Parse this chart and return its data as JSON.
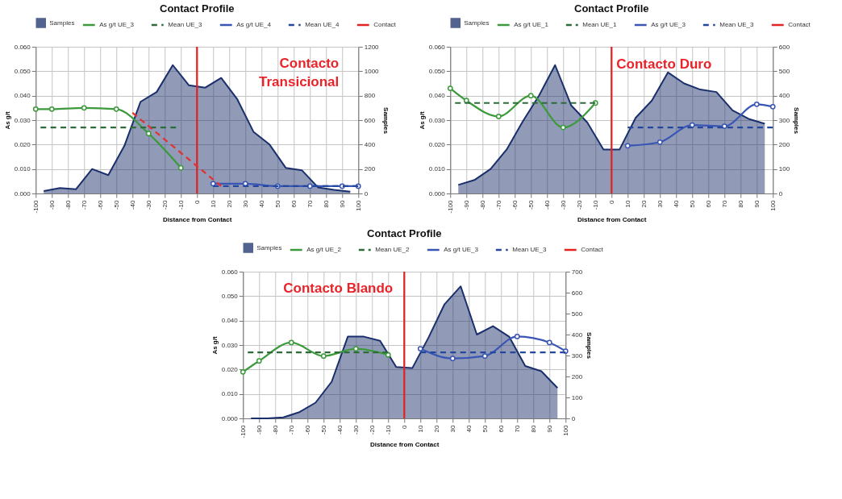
{
  "chart_data": [
    {
      "type": "line",
      "title": "Contact Profile",
      "xlabel": "Distance from Contact",
      "ylabel": "As g/t",
      "y2label": "Samples",
      "xlim": [
        -100,
        100
      ],
      "xticks": [
        -100,
        -90,
        -80,
        -70,
        -60,
        -50,
        -40,
        -30,
        -20,
        -10,
        0,
        10,
        20,
        30,
        40,
        50,
        60,
        70,
        80,
        90,
        100
      ],
      "ylim": [
        0,
        0.06
      ],
      "yticks": [
        {
          "value": 0,
          "label": "0.000"
        },
        {
          "value": 0.01,
          "label": "0.010"
        },
        {
          "value": 0.02,
          "label": "0.020"
        },
        {
          "value": 0.03,
          "label": "0.030"
        },
        {
          "value": 0.04,
          "label": "0.040"
        },
        {
          "value": 0.05,
          "label": "0.050"
        },
        {
          "value": 0.06,
          "label": "0.060"
        }
      ],
      "y2lim": [
        0,
        1200
      ],
      "y2ticks": [
        0,
        200,
        400,
        600,
        800,
        1000,
        1200
      ],
      "grid": true,
      "legend": "top",
      "annotations": [
        "Contacto Transicional"
      ],
      "series": [
        {
          "name": "Samples",
          "type": "area",
          "axis": "y2",
          "color": "#1a2f6b",
          "x": [
            -95,
            -85,
            -75,
            -65,
            -55,
            -45,
            -35,
            -25,
            -15,
            -5,
            5,
            15,
            25,
            35,
            45,
            55,
            65,
            75,
            85,
            95
          ],
          "values": [
            20,
            45,
            35,
            200,
            150,
            390,
            750,
            830,
            1050,
            885,
            865,
            945,
            770,
            505,
            400,
            210,
            190,
            50,
            30,
            15
          ]
        },
        {
          "name": "As g/t UE_3",
          "color": "#3c9a3c",
          "marker": "circle",
          "line_style": "solid",
          "x": [
            -100,
            -90,
            -70,
            -50,
            -30,
            -10
          ],
          "values": [
            0.0345,
            0.0345,
            0.035,
            0.0345,
            0.0245,
            0.0105
          ]
        },
        {
          "name": "Mean UE_3",
          "color": "#2e6b3a",
          "line_style": "dashed",
          "x": [
            -97,
            -13
          ],
          "values": [
            0.027,
            0.027
          ]
        },
        {
          "name": "As g/t UE_4",
          "color": "#3a56b4",
          "marker": "circle",
          "line_style": "solid",
          "x": [
            10,
            30,
            50,
            70,
            90,
            100
          ],
          "values": [
            0.004,
            0.004,
            0.003,
            0.003,
            0.003,
            0.003
          ]
        },
        {
          "name": "Mean UE_4",
          "color": "#24479e",
          "line_style": "dashed",
          "x": [
            10,
            100
          ],
          "values": [
            0.003,
            0.003
          ]
        },
        {
          "name": "Contact",
          "color": "#e32222",
          "line_style": "solid",
          "x": [
            0,
            0
          ],
          "values": [
            0,
            0.06
          ]
        },
        {
          "color": "#e53030",
          "line_style": "dashed",
          "x": [
            -40,
            15
          ],
          "values": [
            0.033,
            0.003
          ]
        }
      ]
    },
    {
      "type": "line",
      "title": "Contact Profile",
      "xlabel": "Distance from Contact",
      "ylabel": "As g/t",
      "y2label": "Samples",
      "xlim": [
        -100,
        100
      ],
      "xticks": [
        -100,
        -90,
        -80,
        -70,
        -60,
        -50,
        -40,
        -30,
        -20,
        -10,
        0,
        10,
        20,
        30,
        40,
        50,
        60,
        70,
        80,
        90,
        100
      ],
      "ylim": [
        0,
        0.06
      ],
      "yticks": [
        {
          "value": 0,
          "label": "0.000"
        },
        {
          "value": 0.01,
          "label": "0.010"
        },
        {
          "value": 0.02,
          "label": "0.020"
        },
        {
          "value": 0.03,
          "label": "0.030"
        },
        {
          "value": 0.04,
          "label": "0.040"
        },
        {
          "value": 0.05,
          "label": "0.050"
        },
        {
          "value": 0.06,
          "label": "0.060"
        }
      ],
      "y2lim": [
        0,
        600
      ],
      "y2ticks": [
        0,
        100,
        200,
        300,
        400,
        500,
        600
      ],
      "grid": true,
      "legend": "top",
      "annotations": [
        "Contacto Duro"
      ],
      "series": [
        {
          "name": "Samples",
          "type": "area",
          "axis": "y2",
          "color": "#1a2f6b",
          "x": [
            -95,
            -85,
            -75,
            -65,
            -55,
            -45,
            -35,
            -25,
            -15,
            -5,
            5,
            15,
            25,
            35,
            45,
            55,
            65,
            75,
            85,
            95
          ],
          "values": [
            35,
            55,
            100,
            180,
            295,
            400,
            525,
            360,
            290,
            180,
            180,
            310,
            380,
            495,
            450,
            425,
            415,
            340,
            305,
            285
          ]
        },
        {
          "name": "As g/t UE_1",
          "color": "#3c9a3c",
          "marker": "circle",
          "line_style": "solid",
          "x": [
            -100,
            -90,
            -70,
            -50,
            -30,
            -10
          ],
          "values": [
            0.043,
            0.038,
            0.0315,
            0.04,
            0.027,
            0.037
          ]
        },
        {
          "name": "Mean UE_1",
          "color": "#2e6b3a",
          "line_style": "dashed",
          "x": [
            -97,
            -10
          ],
          "values": [
            0.037,
            0.037
          ]
        },
        {
          "name": "As g/t UE_3",
          "color": "#3a56b4",
          "marker": "circle",
          "line_style": "solid",
          "x": [
            10,
            30,
            50,
            70,
            90,
            100
          ],
          "values": [
            0.0195,
            0.021,
            0.028,
            0.0275,
            0.0365,
            0.0355
          ]
        },
        {
          "name": "Mean UE_3",
          "color": "#24479e",
          "line_style": "dashed",
          "x": [
            10,
            100
          ],
          "values": [
            0.027,
            0.027
          ]
        },
        {
          "name": "Contact",
          "color": "#e32222",
          "line_style": "solid",
          "x": [
            0,
            0
          ],
          "values": [
            0,
            0.06
          ]
        }
      ]
    },
    {
      "type": "line",
      "title": "Contact Profile",
      "xlabel": "Distance from Contact",
      "ylabel": "As g/t",
      "y2label": "Samples",
      "xlim": [
        -100,
        100
      ],
      "xticks": [
        -100,
        -90,
        -80,
        -70,
        -60,
        -50,
        -40,
        -30,
        -20,
        -10,
        0,
        10,
        20,
        30,
        40,
        50,
        60,
        70,
        80,
        90,
        100
      ],
      "ylim": [
        0,
        0.06
      ],
      "yticks": [
        {
          "value": 0,
          "label": "0.000"
        },
        {
          "value": 0.01,
          "label": "0.010"
        },
        {
          "value": 0.02,
          "label": "0.020"
        },
        {
          "value": 0.03,
          "label": "0.030"
        },
        {
          "value": 0.04,
          "label": "0.040"
        },
        {
          "value": 0.05,
          "label": "0.050"
        },
        {
          "value": 0.06,
          "label": "0.060"
        }
      ],
      "y2lim": [
        0,
        700
      ],
      "y2ticks": [
        0,
        100,
        200,
        300,
        400,
        500,
        600,
        700
      ],
      "grid": true,
      "legend": "top",
      "annotations": [
        "Contacto Blando"
      ],
      "series": [
        {
          "name": "Samples",
          "type": "area",
          "axis": "y2",
          "color": "#1a2f6b",
          "x": [
            -95,
            -85,
            -75,
            -65,
            -55,
            -45,
            -35,
            -25,
            -15,
            -5,
            5,
            15,
            25,
            35,
            45,
            55,
            65,
            75,
            85,
            95
          ],
          "values": [
            0,
            0,
            5,
            30,
            75,
            175,
            390,
            390,
            370,
            245,
            240,
            385,
            545,
            630,
            400,
            440,
            390,
            250,
            225,
            145
          ]
        },
        {
          "name": "As g/t UE_2",
          "color": "#3c9a3c",
          "marker": "circle",
          "line_style": "solid",
          "x": [
            -100,
            -90,
            -70,
            -50,
            -30,
            -10
          ],
          "values": [
            0.019,
            0.0235,
            0.031,
            0.0255,
            0.0285,
            0.026
          ]
        },
        {
          "name": "Mean UE_2",
          "color": "#2e6b3a",
          "line_style": "dashed",
          "x": [
            -97,
            -10
          ],
          "values": [
            0.027,
            0.027
          ]
        },
        {
          "name": "As g/t UE_3",
          "color": "#3a56b4",
          "marker": "circle",
          "line_style": "solid",
          "x": [
            10,
            30,
            50,
            70,
            90,
            100
          ],
          "values": [
            0.0285,
            0.0245,
            0.0255,
            0.0335,
            0.031,
            0.0275
          ]
        },
        {
          "name": "Mean UE_3",
          "color": "#24479e",
          "line_style": "dashed",
          "x": [
            10,
            100
          ],
          "values": [
            0.027,
            0.027
          ]
        },
        {
          "name": "Contact",
          "color": "#e32222",
          "line_style": "solid",
          "x": [
            0,
            0
          ],
          "values": [
            0,
            0.06
          ]
        }
      ]
    }
  ]
}
